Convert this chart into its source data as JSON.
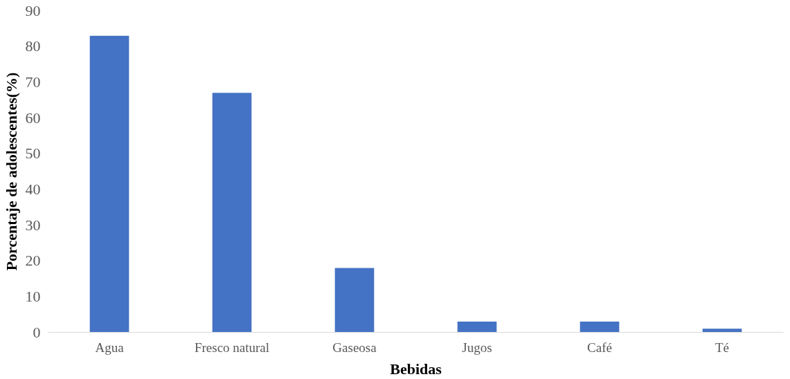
{
  "chart_data": {
    "type": "bar",
    "xlabel": "Bebidas",
    "ylabel": "Porcentaje de adolescentes(%)",
    "categories": [
      "Agua",
      "Fresco natural",
      "Gaseosa",
      "Jugos",
      "Café",
      "Té"
    ],
    "values": [
      83,
      67,
      18,
      3,
      3,
      1
    ],
    "color": "#4472c4",
    "ylim": [
      0,
      90
    ],
    "yticks": [
      0,
      10,
      20,
      30,
      40,
      50,
      60,
      70,
      80,
      90
    ],
    "grid": false
  }
}
